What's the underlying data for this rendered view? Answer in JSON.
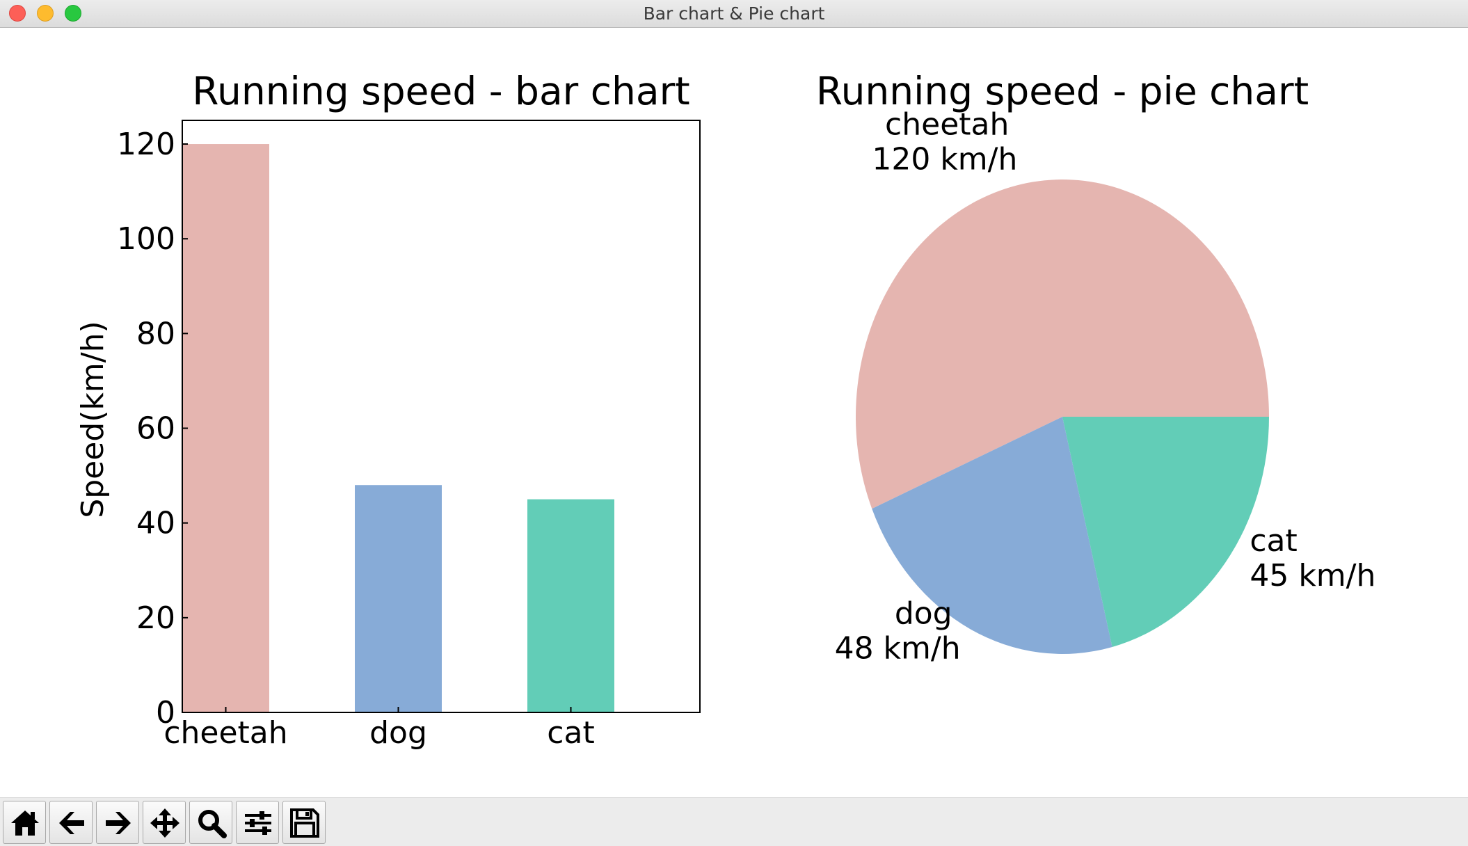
{
  "window": {
    "title": "Bar chart & Pie chart"
  },
  "toolbar": {
    "buttons": [
      {
        "name": "home-button",
        "icon": "home-icon"
      },
      {
        "name": "back-button",
        "icon": "arrow-left-icon"
      },
      {
        "name": "forward-button",
        "icon": "arrow-right-icon"
      },
      {
        "name": "pan-button",
        "icon": "move-icon"
      },
      {
        "name": "zoom-button",
        "icon": "magnifier-icon"
      },
      {
        "name": "configure-subplots-button",
        "icon": "sliders-icon"
      },
      {
        "name": "save-button",
        "icon": "floppy-disk-icon"
      }
    ]
  },
  "chart_data": [
    {
      "type": "bar",
      "title": "Running speed - bar chart",
      "xlabel": "",
      "ylabel": "Speed(km/h)",
      "categories": [
        "cheetah",
        "dog",
        "cat"
      ],
      "values": [
        120,
        48,
        45
      ],
      "colors": [
        "#e5b5b0",
        "#87abd7",
        "#62cdb7"
      ],
      "ylim": [
        0,
        125
      ],
      "yticks": [
        0,
        20,
        40,
        60,
        80,
        100,
        120
      ],
      "grid": false
    },
    {
      "type": "pie",
      "title": "Running speed - pie chart",
      "labels": [
        "cheetah",
        "dog",
        "cat"
      ],
      "values": [
        120,
        48,
        45
      ],
      "value_labels": [
        "120 km/h",
        "48 km/h",
        "45 km/h"
      ],
      "colors": [
        "#e5b5b0",
        "#87abd7",
        "#62cdb7"
      ]
    }
  ]
}
